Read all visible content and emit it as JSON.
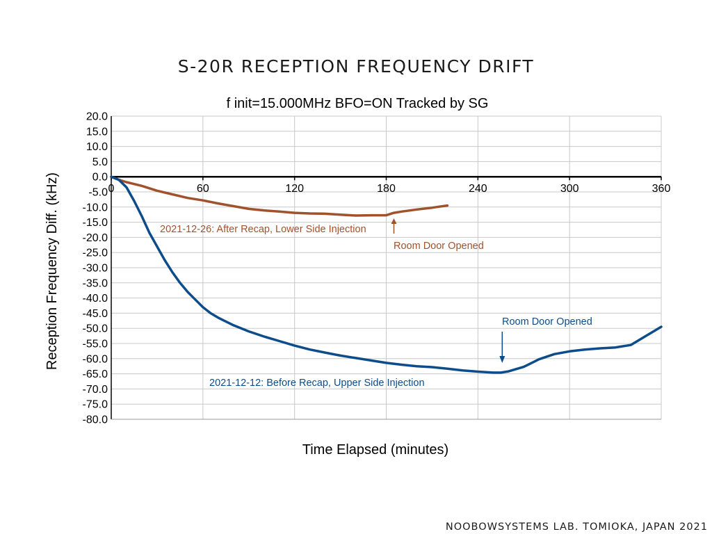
{
  "chart_data": {
    "type": "line",
    "title": "S-20R RECEPTION FREQUENCY DRIFT",
    "subtitle": "f init=15.000MHz BFO=ON Tracked by SG",
    "xlabel": "Time Elapsed (minutes)",
    "ylabel": "Reception Frequency Diff.  (kHz)",
    "xlim": [
      0,
      360
    ],
    "ylim": [
      -80,
      20
    ],
    "x_ticks": [
      "0",
      "60",
      "120",
      "180",
      "240",
      "300",
      "360"
    ],
    "y_ticks": [
      "20.0",
      "15.0",
      "10.0",
      "5.0",
      "0.0",
      "-5.0",
      "-10.0",
      "-15.0",
      "-20.0",
      "-25.0",
      "-30.0",
      "-35.0",
      "-40.0",
      "-45.0",
      "-50.0",
      "-55.0",
      "-60.0",
      "-65.0",
      "-70.0",
      "-75.0",
      "-80.0"
    ],
    "grid": true,
    "series": [
      {
        "name": "2021-12-26: After Recap, Lower Side Injection",
        "color": "#a0522d",
        "points": [
          [
            0,
            0
          ],
          [
            5,
            -1
          ],
          [
            10,
            -1.8
          ],
          [
            20,
            -3
          ],
          [
            30,
            -4.6
          ],
          [
            40,
            -5.8
          ],
          [
            50,
            -7
          ],
          [
            60,
            -7.8
          ],
          [
            70,
            -8.8
          ],
          [
            80,
            -9.7
          ],
          [
            90,
            -10.6
          ],
          [
            100,
            -11.1
          ],
          [
            110,
            -11.5
          ],
          [
            120,
            -11.9
          ],
          [
            130,
            -12.1
          ],
          [
            140,
            -12.2
          ],
          [
            150,
            -12.5
          ],
          [
            160,
            -12.8
          ],
          [
            170,
            -12.7
          ],
          [
            180,
            -12.7
          ],
          [
            185,
            -11.9
          ],
          [
            190,
            -11.5
          ],
          [
            200,
            -10.8
          ],
          [
            210,
            -10.2
          ],
          [
            220,
            -9.5
          ]
        ]
      },
      {
        "name": "2021-12-12: Before Recap, Upper Side Injection",
        "color": "#0d4c8b",
        "points": [
          [
            0,
            0
          ],
          [
            5,
            -1
          ],
          [
            10,
            -3.5
          ],
          [
            15,
            -8
          ],
          [
            20,
            -13
          ],
          [
            25,
            -18.5
          ],
          [
            30,
            -23
          ],
          [
            35,
            -27.5
          ],
          [
            40,
            -31.5
          ],
          [
            45,
            -35
          ],
          [
            50,
            -38
          ],
          [
            55,
            -40.5
          ],
          [
            60,
            -43
          ],
          [
            65,
            -45
          ],
          [
            70,
            -46.5
          ],
          [
            80,
            -49
          ],
          [
            90,
            -51
          ],
          [
            100,
            -52.7
          ],
          [
            110,
            -54.2
          ],
          [
            120,
            -55.7
          ],
          [
            130,
            -57
          ],
          [
            140,
            -58
          ],
          [
            150,
            -59
          ],
          [
            160,
            -59.8
          ],
          [
            170,
            -60.6
          ],
          [
            180,
            -61.4
          ],
          [
            190,
            -62
          ],
          [
            200,
            -62.5
          ],
          [
            210,
            -62.8
          ],
          [
            220,
            -63.3
          ],
          [
            230,
            -63.9
          ],
          [
            240,
            -64.3
          ],
          [
            250,
            -64.6
          ],
          [
            255,
            -64.6
          ],
          [
            260,
            -64.2
          ],
          [
            270,
            -62.7
          ],
          [
            280,
            -60.2
          ],
          [
            290,
            -58.5
          ],
          [
            300,
            -57.6
          ],
          [
            310,
            -57
          ],
          [
            320,
            -56.6
          ],
          [
            330,
            -56.3
          ],
          [
            340,
            -55.5
          ],
          [
            350,
            -52.5
          ],
          [
            360,
            -49.5
          ]
        ]
      }
    ],
    "annotations": [
      {
        "name": "lower-series-label",
        "text": "2021-12-26: After Recap, Lower Side Injection",
        "color": "#a0522d"
      },
      {
        "name": "lower-door-note",
        "text": "Room Door Opened",
        "color": "#a0522d",
        "x": 185,
        "y": -12.5
      },
      {
        "name": "upper-series-label",
        "text": "2021-12-12: Before Recap, Upper Side Injection",
        "color": "#0d4c8b"
      },
      {
        "name": "upper-door-note",
        "text": "Room Door Opened",
        "color": "#0d4c8b",
        "x": 255,
        "y": -64.6
      }
    ]
  },
  "footer": "NOOBOWSYSTEMS LAB. TOMIOKA, JAPAN 2021"
}
